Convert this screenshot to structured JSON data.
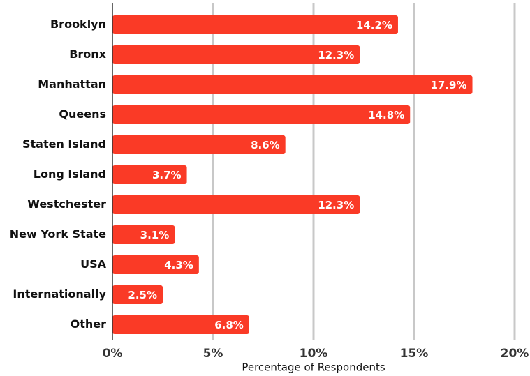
{
  "chart_data": {
    "type": "barh",
    "categories": [
      "Brooklyn",
      "Bronx",
      "Manhattan",
      "Queens",
      "Staten Island",
      "Long Island",
      "Westchester",
      "New York State",
      "USA",
      "Internationally",
      "Other"
    ],
    "values": [
      14.2,
      12.3,
      17.9,
      14.8,
      8.6,
      3.7,
      12.3,
      3.1,
      4.3,
      2.5,
      6.8
    ],
    "value_labels": [
      "14.2%",
      "12.3%",
      "17.9%",
      "14.8%",
      "8.6%",
      "3.7%",
      "12.3%",
      "3.1%",
      "4.3%",
      "2.5%",
      "6.8%"
    ],
    "color": "#fa3a26",
    "xlim": [
      0,
      20
    ],
    "xticks": [
      {
        "value": 0,
        "label": "0%"
      },
      {
        "value": 5,
        "label": "5%"
      },
      {
        "value": 10,
        "label": "10%"
      },
      {
        "value": 15,
        "label": "15%"
      },
      {
        "value": 20,
        "label": "20%"
      }
    ],
    "xlabel": "Percentage of Respondents",
    "grid": true
  }
}
